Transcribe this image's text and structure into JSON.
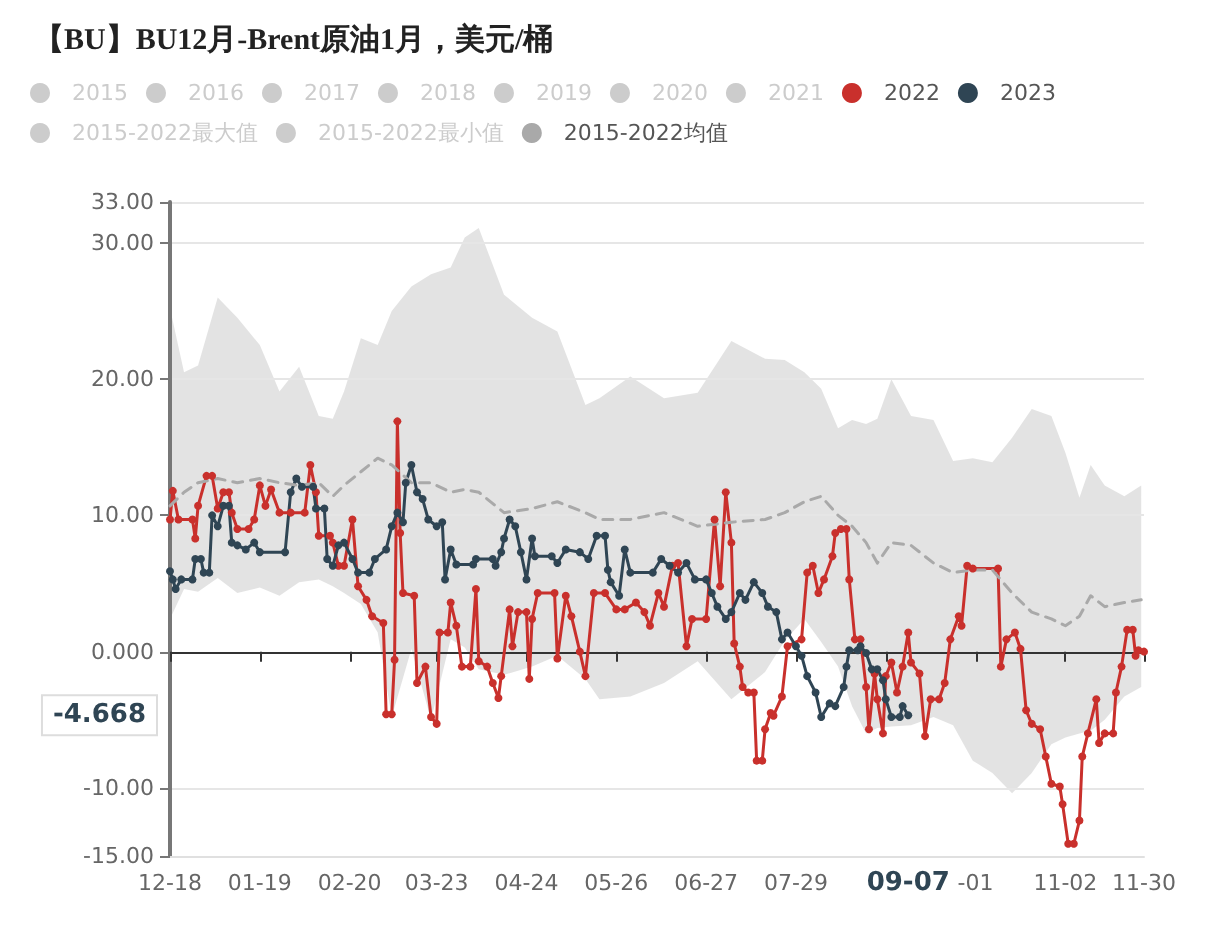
{
  "chart_data": {
    "type": "line",
    "title": "【BU】BU12月-Brent原油1月，美元/桶",
    "xlim": [
      "2022-12-18",
      "2023-11-30"
    ],
    "xticks": [
      {
        "value": "2022-12-18",
        "label": "12-18"
      },
      {
        "value": "2023-01-19",
        "label": "01-19"
      },
      {
        "value": "2023-02-20",
        "label": "02-20"
      },
      {
        "value": "2023-03-23",
        "label": "03-23"
      },
      {
        "value": "2023-04-24",
        "label": "04-24"
      },
      {
        "value": "2023-05-26",
        "label": "05-26"
      },
      {
        "value": "2023-06-27",
        "label": "06-27"
      },
      {
        "value": "2023-07-29",
        "label": "07-29"
      },
      {
        "value": "2023-08-30",
        "label": null
      },
      {
        "value": "2023-10-01",
        "label": "-01"
      },
      {
        "value": "2023-11-02",
        "label": "11-02"
      },
      {
        "value": "2023-11-30",
        "label": "11-30"
      }
    ],
    "ylim": [
      -15,
      33
    ],
    "yticks": [
      {
        "value": -15,
        "label": "-15.00"
      },
      {
        "value": -10,
        "label": "-10.00"
      },
      {
        "value": 0,
        "label": "0.000"
      },
      {
        "value": 10,
        "label": "10.00"
      },
      {
        "value": 20,
        "label": "20.00"
      },
      {
        "value": 30,
        "label": "30.00"
      },
      {
        "value": 33,
        "label": "33.00"
      }
    ],
    "grid": "y",
    "legend": "top",
    "annotations": [
      "09-07",
      "-4.668"
    ],
    "series": [
      {
        "name": "2015"
      },
      {
        "name": "2016"
      },
      {
        "name": "2017"
      },
      {
        "name": "2018"
      },
      {
        "name": "2019"
      },
      {
        "name": "2020"
      },
      {
        "name": "2021"
      },
      {
        "name": "2022",
        "color": "#c9302c",
        "marker": "circle",
        "x": [
          "2022-12-18",
          "2022-12-19",
          "2022-12-21",
          "2022-12-26",
          "2022-12-27",
          "2022-12-28",
          "2022-12-31",
          "2023-01-02",
          "2023-01-04",
          "2023-01-06",
          "2023-01-08",
          "2023-01-09",
          "2023-01-11",
          "2023-01-15",
          "2023-01-17",
          "2023-01-19",
          "2023-01-21",
          "2023-01-23",
          "2023-01-26",
          "2023-01-30",
          "2023-02-04",
          "2023-02-06",
          "2023-02-08",
          "2023-02-09",
          "2023-02-13",
          "2023-02-14",
          "2023-02-16",
          "2023-02-18",
          "2023-02-21",
          "2023-02-23",
          "2023-02-26",
          "2023-02-28",
          "2023-03-04",
          "2023-03-05",
          "2023-03-07",
          "2023-03-08",
          "2023-03-09",
          "2023-03-10",
          "2023-03-11",
          "2023-03-15",
          "2023-03-16",
          "2023-03-19",
          "2023-03-21",
          "2023-03-23",
          "2023-03-24",
          "2023-03-27",
          "2023-03-28",
          "2023-03-30",
          "2023-04-01",
          "2023-04-04",
          "2023-04-06",
          "2023-04-07",
          "2023-04-10",
          "2023-04-12",
          "2023-04-14",
          "2023-04-15",
          "2023-04-18",
          "2023-04-19",
          "2023-04-21",
          "2023-04-24",
          "2023-04-25",
          "2023-04-26",
          "2023-04-28",
          "2023-05-04",
          "2023-05-05",
          "2023-05-08",
          "2023-05-10",
          "2023-05-13",
          "2023-05-15",
          "2023-05-18",
          "2023-05-22",
          "2023-05-26",
          "2023-05-29",
          "2023-06-02",
          "2023-06-05",
          "2023-06-07",
          "2023-06-10",
          "2023-06-12",
          "2023-06-15",
          "2023-06-17",
          "2023-06-20",
          "2023-06-22",
          "2023-06-27",
          "2023-06-30",
          "2023-07-02",
          "2023-07-04",
          "2023-07-06",
          "2023-07-07",
          "2023-07-09",
          "2023-07-10",
          "2023-07-12",
          "2023-07-14",
          "2023-07-15",
          "2023-07-17",
          "2023-07-18",
          "2023-07-20",
          "2023-07-21",
          "2023-07-24",
          "2023-07-26",
          "2023-07-31",
          "2023-08-02",
          "2023-08-04",
          "2023-08-06",
          "2023-08-08",
          "2023-08-11",
          "2023-08-12",
          "2023-08-14",
          "2023-08-16",
          "2023-08-17",
          "2023-08-19",
          "2023-08-21",
          "2023-08-23",
          "2023-08-24",
          "2023-08-26",
          "2023-08-27",
          "2023-08-29",
          "2023-08-30",
          "2023-09-01",
          "2023-09-03",
          "2023-09-05",
          "2023-09-07",
          "2023-09-08",
          "2023-09-11",
          "2023-09-13",
          "2023-09-15",
          "2023-09-18",
          "2023-09-20",
          "2023-09-22",
          "2023-09-25",
          "2023-09-26",
          "2023-09-28",
          "2023-09-30",
          "2023-10-09",
          "2023-10-10",
          "2023-10-12",
          "2023-10-15",
          "2023-10-17",
          "2023-10-19",
          "2023-10-21",
          "2023-10-24",
          "2023-10-26",
          "2023-10-28",
          "2023-10-31",
          "2023-11-01",
          "2023-11-03",
          "2023-11-05",
          "2023-11-07",
          "2023-11-08",
          "2023-11-10",
          "2023-11-13",
          "2023-11-14",
          "2023-11-16",
          "2023-11-19",
          "2023-11-20",
          "2023-11-22",
          "2023-11-24",
          "2023-11-26",
          "2023-11-27",
          "2023-11-28",
          "2023-11-30"
        ],
        "values": [
          9.7,
          11.8,
          9.7,
          9.7,
          8.3,
          10.7,
          12.9,
          12.9,
          10.5,
          11.7,
          11.7,
          10.2,
          9.0,
          9.0,
          9.7,
          12.2,
          10.7,
          11.9,
          10.2,
          10.2,
          10.2,
          13.7,
          11.7,
          8.5,
          8.5,
          8.0,
          6.3,
          6.3,
          9.7,
          4.8,
          3.8,
          2.6,
          2.1,
          -4.6,
          -4.6,
          -0.6,
          16.9,
          8.7,
          4.3,
          4.1,
          -2.3,
          -1.1,
          -4.8,
          -5.3,
          1.4,
          1.4,
          3.6,
          1.9,
          -1.1,
          -1.1,
          4.6,
          -0.7,
          -1.1,
          -2.3,
          -3.4,
          -1.8,
          3.1,
          0.4,
          2.9,
          2.9,
          -2.0,
          2.4,
          4.3,
          4.3,
          -0.5,
          4.1,
          2.6,
          0.0,
          -1.8,
          4.3,
          4.3,
          3.1,
          3.1,
          3.6,
          2.9,
          1.9,
          4.3,
          3.3,
          6.3,
          6.5,
          0.4,
          2.4,
          2.4,
          9.7,
          4.8,
          11.7,
          8.0,
          0.6,
          -1.1,
          -2.6,
          -3.0,
          -3.0,
          -8.0,
          -8.0,
          -5.7,
          -4.5,
          -4.7,
          -3.3,
          0.4,
          0.9,
          5.8,
          6.3,
          4.3,
          5.3,
          7.0,
          8.7,
          9.0,
          9.0,
          5.3,
          0.9,
          0.9,
          -2.6,
          -5.7,
          -1.6,
          -3.5,
          -6.0,
          -1.8,
          -0.8,
          -3.0,
          -1.1,
          1.4,
          -0.8,
          -1.6,
          -6.2,
          -3.5,
          -3.5,
          -2.3,
          0.9,
          2.6,
          1.9,
          6.3,
          6.1,
          6.1,
          -1.1,
          0.9,
          1.4,
          0.2,
          -4.3,
          -5.3,
          -5.7,
          -7.7,
          -9.7,
          -9.9,
          -11.2,
          -14.1,
          -14.1,
          -12.4,
          -7.7,
          -6.0,
          -3.5,
          -6.7,
          -6.0,
          -6.0,
          -3.0,
          -1.1,
          1.6,
          1.6,
          -0.3,
          0.1,
          0
        ]
      },
      {
        "name": "2023",
        "color": "#2f4554",
        "marker": "circle",
        "x": [
          "2022-12-18",
          "2022-12-19",
          "2022-12-20",
          "2022-12-22",
          "2022-12-26",
          "2022-12-27",
          "2022-12-29",
          "2022-12-30",
          "2023-01-01",
          "2023-01-02",
          "2023-01-04",
          "2023-01-06",
          "2023-01-08",
          "2023-01-09",
          "2023-01-11",
          "2023-01-14",
          "2023-01-17",
          "2023-01-19",
          "2023-01-28",
          "2023-01-30",
          "2023-02-01",
          "2023-02-03",
          "2023-02-07",
          "2023-02-08",
          "2023-02-11",
          "2023-02-12",
          "2023-02-14",
          "2023-02-16",
          "2023-02-18",
          "2023-02-21",
          "2023-02-23",
          "2023-02-27",
          "2023-03-01",
          "2023-03-05",
          "2023-03-07",
          "2023-03-09",
          "2023-03-11",
          "2023-03-12",
          "2023-03-14",
          "2023-03-16",
          "2023-03-18",
          "2023-03-20",
          "2023-03-23",
          "2023-03-25",
          "2023-03-26",
          "2023-03-28",
          "2023-03-30",
          "2023-04-05",
          "2023-04-06",
          "2023-04-12",
          "2023-04-13",
          "2023-04-15",
          "2023-04-16",
          "2023-04-18",
          "2023-04-20",
          "2023-04-22",
          "2023-04-24",
          "2023-04-26",
          "2023-04-27",
          "2023-05-03",
          "2023-05-05",
          "2023-05-08",
          "2023-05-13",
          "2023-05-16",
          "2023-05-19",
          "2023-05-22",
          "2023-05-23",
          "2023-05-24",
          "2023-05-27",
          "2023-05-29",
          "2023-05-31",
          "2023-06-08",
          "2023-06-11",
          "2023-06-14",
          "2023-06-17",
          "2023-06-20",
          "2023-06-23",
          "2023-06-27",
          "2023-06-29",
          "2023-07-01",
          "2023-07-04",
          "2023-07-06",
          "2023-07-09",
          "2023-07-11",
          "2023-07-14",
          "2023-07-17",
          "2023-07-19",
          "2023-07-22",
          "2023-07-24",
          "2023-07-26",
          "2023-07-29",
          "2023-07-31",
          "2023-08-02",
          "2023-08-05",
          "2023-08-07",
          "2023-08-10",
          "2023-08-12",
          "2023-08-15",
          "2023-08-16",
          "2023-08-17",
          "2023-08-20",
          "2023-08-21",
          "2023-08-23",
          "2023-08-25",
          "2023-08-27",
          "2023-08-29",
          "2023-08-30",
          "2023-09-01",
          "2023-09-04",
          "2023-09-05",
          "2023-09-07"
        ],
        "values": [
          5.9,
          5.3,
          4.6,
          5.3,
          5.3,
          6.8,
          6.8,
          5.8,
          5.8,
          10.0,
          9.2,
          10.7,
          10.7,
          8.0,
          7.8,
          7.5,
          8.0,
          7.3,
          7.3,
          11.7,
          12.7,
          12.1,
          12.1,
          10.5,
          10.5,
          6.8,
          6.3,
          7.8,
          8.0,
          6.8,
          5.8,
          5.8,
          6.8,
          7.5,
          9.2,
          10.2,
          9.5,
          12.4,
          13.7,
          11.7,
          11.2,
          9.7,
          9.2,
          9.5,
          5.3,
          7.5,
          6.4,
          6.4,
          6.8,
          6.8,
          6.3,
          7.3,
          8.3,
          9.7,
          9.2,
          7.3,
          5.3,
          8.3,
          7.0,
          7.0,
          6.5,
          7.5,
          7.3,
          6.8,
          8.5,
          8.5,
          6.0,
          5.1,
          4.1,
          7.5,
          5.8,
          5.8,
          6.8,
          6.3,
          5.8,
          6.5,
          5.3,
          5.3,
          4.3,
          3.3,
          2.4,
          2.9,
          4.3,
          3.8,
          5.1,
          4.3,
          3.3,
          2.9,
          0.9,
          1.4,
          0.4,
          -0.3,
          -1.8,
          -3.0,
          -4.8,
          -3.8,
          -4.0,
          -2.6,
          -1.1,
          0.1,
          0.1,
          0.4,
          -0.1,
          -1.3,
          -1.3,
          -2.1,
          -3.5,
          -4.8,
          -4.8,
          -4.0,
          -4.668
        ]
      },
      {
        "name": "2015-2022最大值"
      },
      {
        "name": "2015-2022最小值"
      },
      {
        "name": "2015-2022均值",
        "color": "#a9a9a9",
        "marker": "none",
        "line_style": "dashed",
        "x": [
          "2022-12-18",
          "2022-12-23",
          "2022-12-28",
          "2023-01-04",
          "2023-01-11",
          "2023-01-19",
          "2023-01-26",
          "2023-02-02",
          "2023-02-09",
          "2023-02-14",
          "2023-02-18",
          "2023-02-24",
          "2023-03-02",
          "2023-03-07",
          "2023-03-14",
          "2023-03-21",
          "2023-03-28",
          "2023-04-02",
          "2023-04-07",
          "2023-04-16",
          "2023-04-26",
          "2023-05-05",
          "2023-05-15",
          "2023-05-20",
          "2023-05-31",
          "2023-06-12",
          "2023-06-24",
          "2023-07-06",
          "2023-07-18",
          "2023-07-25",
          "2023-08-01",
          "2023-08-07",
          "2023-08-13",
          "2023-08-18",
          "2023-08-23",
          "2023-08-27",
          "2023-09-01",
          "2023-09-08",
          "2023-09-16",
          "2023-09-23",
          "2023-09-30",
          "2023-10-07",
          "2023-10-14",
          "2023-10-21",
          "2023-10-28",
          "2023-11-02",
          "2023-11-07",
          "2023-11-11",
          "2023-11-16",
          "2023-11-23",
          "2023-11-29"
        ],
        "values": [
          10.7,
          11.7,
          12.4,
          12.7,
          12.4,
          12.7,
          12.4,
          12.2,
          12.4,
          11.4,
          12.2,
          13.2,
          14.2,
          13.7,
          12.4,
          12.4,
          11.7,
          11.9,
          11.7,
          10.2,
          10.5,
          11.0,
          10.2,
          9.7,
          9.7,
          10.2,
          9.2,
          9.5,
          9.7,
          10.2,
          11.0,
          11.4,
          10.0,
          9.2,
          8.0,
          6.5,
          8.0,
          7.8,
          6.5,
          5.8,
          6.0,
          6.0,
          4.3,
          2.9,
          2.4,
          1.9,
          2.6,
          4.1,
          3.3,
          3.6,
          3.8
        ],
        "upper": [
          25.2,
          20.5,
          21.0,
          26.0,
          24.5,
          22.5,
          19.1,
          20.9,
          17.3,
          17.1,
          19.1,
          23.0,
          22.5,
          25.0,
          26.8,
          27.7,
          28.2,
          30.4,
          31.1,
          26.2,
          24.5,
          23.5,
          18.1,
          18.6,
          20.2,
          18.6,
          19.0,
          22.8,
          21.5,
          21.4,
          20.5,
          19.3,
          16.4,
          17.0,
          16.7,
          17.1,
          20.0,
          17.3,
          17.0,
          14.0,
          14.2,
          13.9,
          15.7,
          17.8,
          17.3,
          14.6,
          11.3,
          13.7,
          12.2,
          11.4,
          12.2
        ],
        "lower": [
          2.4,
          4.6,
          4.4,
          5.4,
          4.3,
          4.7,
          4.1,
          5.1,
          5.3,
          4.8,
          4.3,
          3.5,
          1.4,
          -4.8,
          0.2,
          -5.0,
          0.9,
          0.3,
          -1.3,
          -1.7,
          -1.1,
          -0.3,
          -2.0,
          -3.5,
          -3.3,
          -2.3,
          -0.7,
          -3.5,
          -1.5,
          0.8,
          2.4,
          0.7,
          -1.1,
          -4.0,
          -6.0,
          -5.6,
          -5.5,
          -5.4,
          -4.8,
          -5.4,
          -8.0,
          -8.9,
          -10.4,
          -8.9,
          -6.8,
          -6.3,
          -6.0,
          -5.8,
          -5.0,
          -3.3,
          -2.6
        ]
      }
    ]
  }
}
